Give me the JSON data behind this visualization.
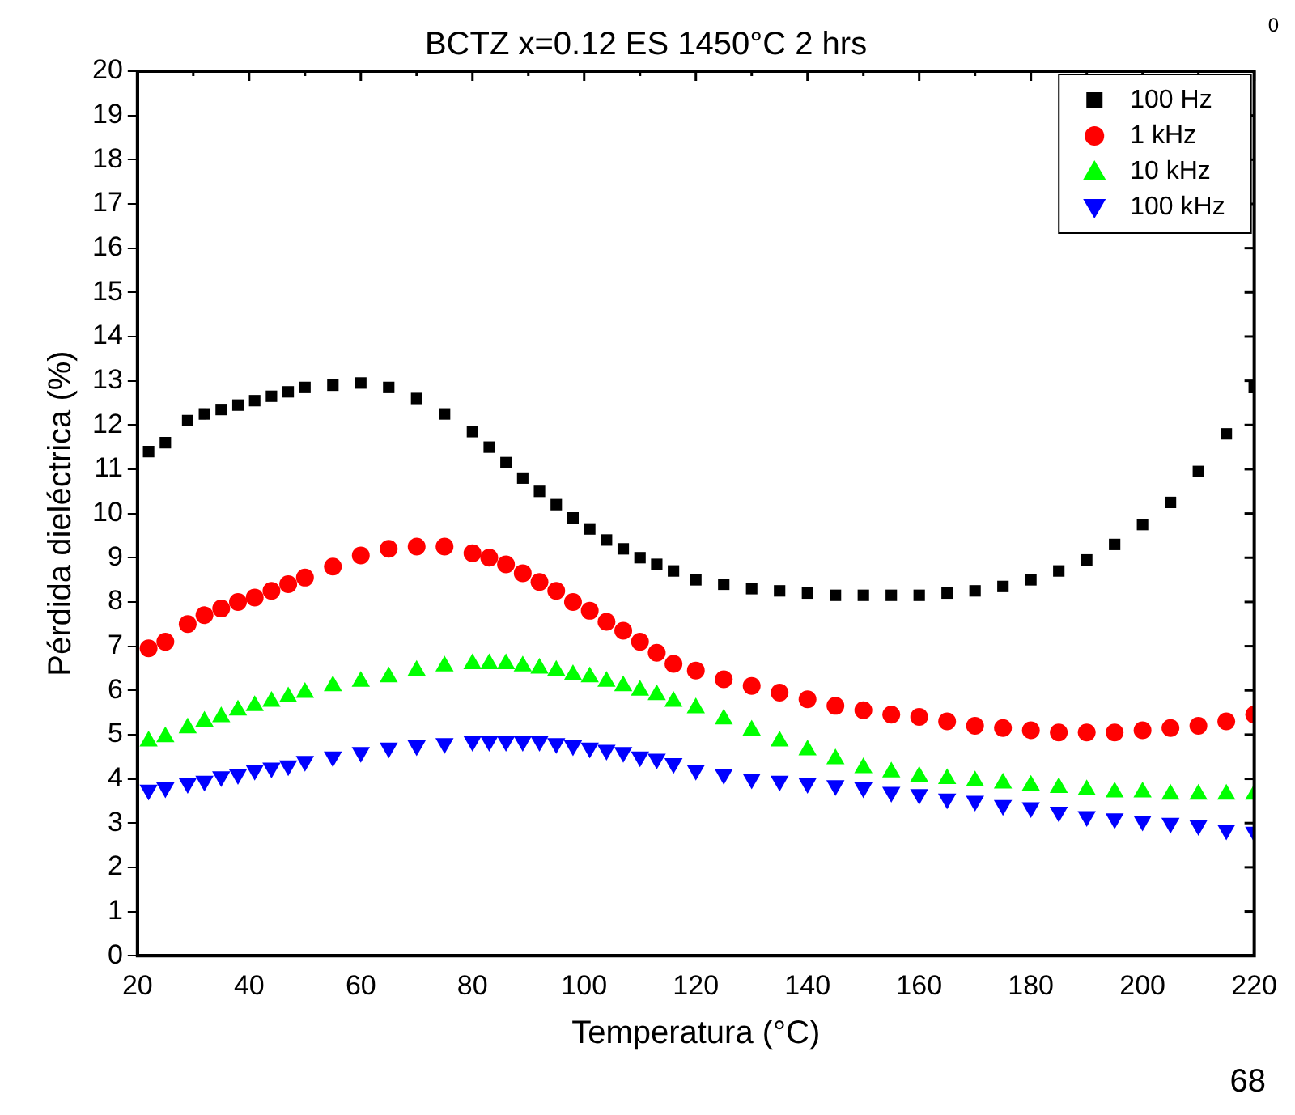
{
  "chart_data": {
    "type": "scatter",
    "title": "BCTZ x=0.12 ES 1450°C 2 hrs",
    "xlabel": "Temperatura (°C)",
    "ylabel": "Pérdida dieléctrica (%)",
    "annotations": [
      "0",
      "68"
    ],
    "x": [
      22,
      25,
      29,
      32,
      35,
      38,
      41,
      44,
      47,
      50,
      55,
      60,
      65,
      70,
      75,
      80,
      83,
      86,
      89,
      92,
      95,
      98,
      101,
      104,
      107,
      110,
      113,
      116,
      120,
      125,
      130,
      135,
      140,
      145,
      150,
      155,
      160,
      165,
      170,
      175,
      180,
      185,
      190,
      195,
      200,
      205,
      210,
      215,
      220
    ],
    "series": [
      {
        "name": "100 Hz",
        "color": "#000000",
        "marker": "square",
        "values": [
          11.4,
          11.6,
          12.1,
          12.25,
          12.35,
          12.45,
          12.55,
          12.65,
          12.75,
          12.85,
          12.9,
          12.95,
          12.85,
          12.6,
          12.25,
          11.85,
          11.5,
          11.15,
          10.8,
          10.5,
          10.2,
          9.9,
          9.65,
          9.4,
          9.2,
          9.0,
          8.85,
          8.7,
          8.5,
          8.4,
          8.3,
          8.25,
          8.2,
          8.15,
          8.15,
          8.15,
          8.15,
          8.2,
          8.25,
          8.35,
          8.5,
          8.7,
          8.95,
          9.3,
          9.75,
          10.25,
          10.95,
          11.8,
          12.85
        ]
      },
      {
        "name": "1 kHz",
        "color": "#ff0000",
        "marker": "circle",
        "values": [
          6.95,
          7.1,
          7.5,
          7.7,
          7.85,
          8.0,
          8.1,
          8.25,
          8.4,
          8.55,
          8.8,
          9.05,
          9.2,
          9.25,
          9.25,
          9.1,
          9.0,
          8.85,
          8.65,
          8.45,
          8.25,
          8.0,
          7.8,
          7.55,
          7.35,
          7.1,
          6.85,
          6.6,
          6.45,
          6.25,
          6.1,
          5.95,
          5.8,
          5.65,
          5.55,
          5.45,
          5.4,
          5.3,
          5.2,
          5.15,
          5.1,
          5.05,
          5.05,
          5.05,
          5.1,
          5.15,
          5.2,
          5.3,
          5.45
        ]
      },
      {
        "name": "10 kHz",
        "color": "#00ff00",
        "marker": "triangle",
        "values": [
          4.85,
          4.95,
          5.15,
          5.3,
          5.4,
          5.55,
          5.65,
          5.75,
          5.85,
          5.95,
          6.1,
          6.2,
          6.3,
          6.45,
          6.55,
          6.6,
          6.6,
          6.6,
          6.55,
          6.5,
          6.45,
          6.35,
          6.3,
          6.2,
          6.1,
          6.0,
          5.9,
          5.75,
          5.6,
          5.35,
          5.1,
          4.85,
          4.65,
          4.45,
          4.25,
          4.15,
          4.05,
          4.0,
          3.95,
          3.9,
          3.85,
          3.8,
          3.75,
          3.7,
          3.7,
          3.65,
          3.65,
          3.65,
          3.65
        ]
      },
      {
        "name": "100 kHz",
        "color": "#0000ff",
        "marker": "triangle-down",
        "values": [
          3.75,
          3.8,
          3.9,
          3.95,
          4.05,
          4.1,
          4.2,
          4.25,
          4.3,
          4.4,
          4.5,
          4.6,
          4.7,
          4.75,
          4.8,
          4.85,
          4.85,
          4.85,
          4.85,
          4.85,
          4.8,
          4.75,
          4.7,
          4.65,
          4.6,
          4.5,
          4.45,
          4.35,
          4.2,
          4.1,
          4.0,
          3.95,
          3.9,
          3.85,
          3.8,
          3.7,
          3.65,
          3.55,
          3.5,
          3.4,
          3.35,
          3.25,
          3.15,
          3.1,
          3.05,
          3.0,
          2.95,
          2.85,
          2.8
        ]
      }
    ],
    "xlim": [
      20,
      220
    ],
    "xticks": [
      20,
      {
        "value": 30,
        "label": null
      },
      40,
      {
        "value": 50,
        "label": null
      },
      60,
      {
        "value": 70,
        "label": null
      },
      80,
      {
        "value": 90,
        "label": null
      },
      100,
      {
        "value": 110,
        "label": null
      },
      120,
      {
        "value": 130,
        "label": null
      },
      140,
      {
        "value": 150,
        "label": null
      },
      160,
      {
        "value": 170,
        "label": null
      },
      180,
      {
        "value": 190,
        "label": null
      },
      200,
      {
        "value": 210,
        "label": null
      },
      220
    ],
    "ylim": [
      0,
      20
    ],
    "yticks": [
      0,
      1,
      2,
      3,
      4,
      5,
      6,
      7,
      8,
      9,
      10,
      11,
      12,
      13,
      14,
      15,
      16,
      17,
      18,
      19,
      20
    ],
    "grid": false,
    "legend": "top right"
  }
}
